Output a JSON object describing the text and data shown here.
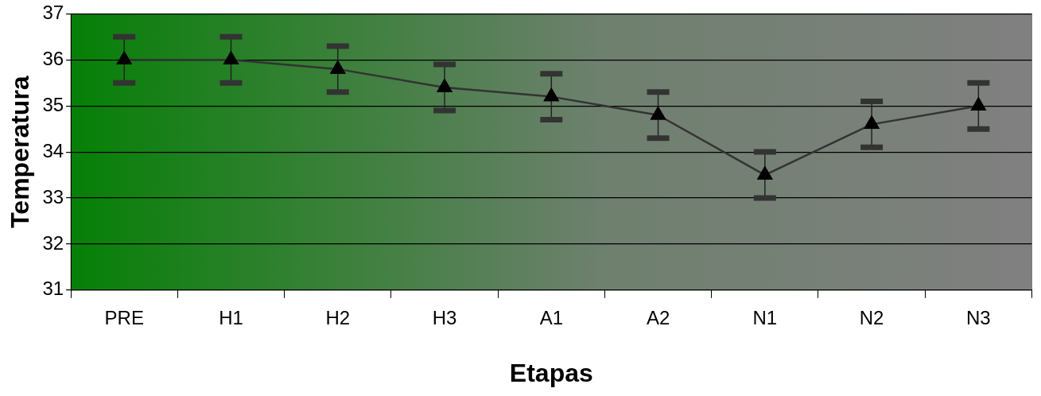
{
  "chart_data": {
    "type": "line",
    "xlabel": "Etapas",
    "ylabel": "Temperatura",
    "categories": [
      "PRE",
      "H1",
      "H2",
      "H3",
      "A1",
      "A2",
      "N1",
      "N2",
      "N3"
    ],
    "series": [
      {
        "color": "#333333",
        "values": [
          36,
          36,
          35.8,
          35.4,
          35.2,
          34.8,
          33.5,
          34.6,
          35
        ],
        "errors": [
          0.5,
          0.5,
          0.5,
          0.5,
          0.5,
          0.5,
          0.5,
          0.5,
          0.5
        ]
      }
    ],
    "ylim": [
      31,
      37
    ],
    "yticks": [
      31,
      32,
      33,
      34,
      35,
      36,
      37
    ],
    "grid": "y",
    "legend": false,
    "marker": "triangle",
    "line_style": "solid"
  }
}
